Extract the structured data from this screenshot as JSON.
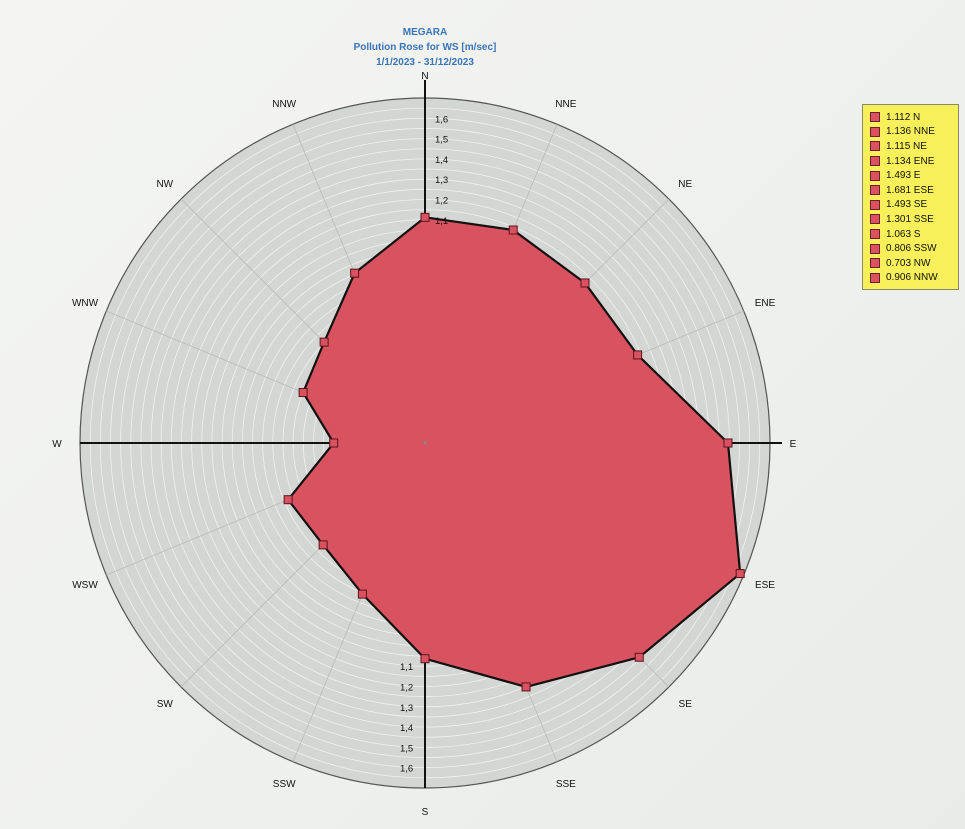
{
  "chart_data": {
    "type": "radar",
    "title": "MEGARA",
    "subtitle": "Pollution Rose for WS [m/sec]",
    "date_range": "1/1/2023 - 31/12/2023",
    "directions": [
      "N",
      "NNE",
      "NE",
      "ENE",
      "E",
      "ESE",
      "SE",
      "SSE",
      "S",
      "SSW",
      "SW",
      "WSW",
      "W",
      "WNW",
      "NW",
      "NNW"
    ],
    "values": [
      1.112,
      1.136,
      1.115,
      1.134,
      1.493,
      1.681,
      1.493,
      1.301,
      1.063,
      0.806,
      0.71,
      0.73,
      0.45,
      0.65,
      0.703,
      0.906
    ],
    "radial_ticks": [
      "1,1",
      "1,2",
      "1,3",
      "1,4",
      "1,5",
      "1,6"
    ],
    "radial_range": [
      0,
      1.7
    ],
    "legend": [
      {
        "value": "1.112",
        "dir": "N"
      },
      {
        "value": "1.136",
        "dir": "NNE"
      },
      {
        "value": "1.115",
        "dir": "NE"
      },
      {
        "value": "1.134",
        "dir": "ENE"
      },
      {
        "value": "1.493",
        "dir": "E"
      },
      {
        "value": "1.681",
        "dir": "ESE"
      },
      {
        "value": "1.493",
        "dir": "SE"
      },
      {
        "value": "1.301",
        "dir": "SSE"
      },
      {
        "value": "1.063",
        "dir": "S"
      },
      {
        "value": "0.806",
        "dir": "SSW"
      },
      {
        "value": "0.703",
        "dir": "NW"
      },
      {
        "value": "0.906",
        "dir": "NNW"
      }
    ],
    "legend_placement": "right",
    "grid": true,
    "fill_color": "#d9525f",
    "outline_color": "#111111",
    "plot_background": "#d3d6d2"
  }
}
